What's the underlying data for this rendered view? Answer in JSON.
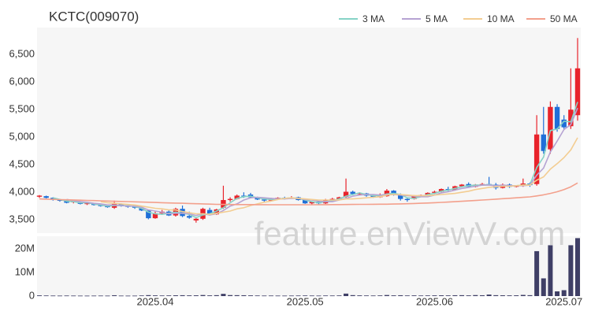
{
  "chart_data": {
    "type": "candlestick",
    "title": "KCTC(009070)",
    "watermark": "feature.enViewV.com",
    "categories": [
      null,
      null,
      null,
      null,
      null,
      null,
      null,
      null,
      null,
      null,
      null,
      null,
      null,
      null,
      null,
      null,
      null,
      "2025.04",
      null,
      null,
      null,
      null,
      null,
      null,
      null,
      null,
      null,
      null,
      null,
      null,
      null,
      null,
      null,
      null,
      null,
      null,
      null,
      null,
      null,
      "2025.05",
      null,
      null,
      null,
      null,
      null,
      null,
      null,
      null,
      null,
      null,
      null,
      null,
      null,
      null,
      null,
      null,
      null,
      null,
      "2025.06",
      null,
      null,
      null,
      null,
      null,
      null,
      null,
      null,
      null,
      null,
      null,
      null,
      null,
      null,
      null,
      null,
      null,
      null,
      "2025.07",
      null,
      null
    ],
    "open": [
      3920,
      3930,
      3900,
      3860,
      3850,
      3820,
      3830,
      3790,
      3800,
      3770,
      3750,
      3720,
      3790,
      3750,
      3740,
      3720,
      3670,
      3530,
      3620,
      3650,
      3580,
      3700,
      3570,
      3490,
      3520,
      3680,
      3600,
      3720,
      3860,
      3880,
      3940,
      3960,
      3910,
      3870,
      3850,
      3880,
      3900,
      3890,
      3910,
      3860,
      3800,
      3830,
      3800,
      3860,
      3880,
      3920,
      4010,
      3970,
      3980,
      3940,
      3910,
      3930,
      4030,
      3960,
      3880,
      3880,
      3940,
      3950,
      3990,
      4010,
      4060,
      4040,
      4110,
      4150,
      4100,
      4140,
      4150,
      4140,
      4080,
      4140,
      4100,
      4120,
      4160,
      4150,
      5050,
      4780,
      5550,
      5320,
      5200,
      5400
    ],
    "high": [
      3950,
      3940,
      3910,
      3880,
      3870,
      3850,
      3840,
      3810,
      3810,
      3790,
      3770,
      3850,
      3800,
      3770,
      3750,
      3730,
      3680,
      3650,
      3680,
      3670,
      3720,
      3760,
      3650,
      3540,
      3720,
      3720,
      3700,
      4120,
      3910,
      3960,
      4000,
      3990,
      3920,
      3890,
      3900,
      3910,
      3920,
      3930,
      3920,
      3870,
      3840,
      3840,
      3880,
      3900,
      3920,
      4250,
      4030,
      4000,
      3990,
      3960,
      3980,
      4060,
      4040,
      3980,
      3900,
      3950,
      3960,
      4000,
      4030,
      4070,
      4100,
      4120,
      4150,
      4180,
      4150,
      4170,
      4280,
      4170,
      4160,
      4160,
      4130,
      4250,
      4180,
      5400,
      5550,
      5650,
      5600,
      5400,
      6250,
      6800
    ],
    "low": [
      3900,
      3890,
      3850,
      3830,
      3800,
      3800,
      3780,
      3770,
      3760,
      3740,
      3720,
      3700,
      3740,
      3720,
      3700,
      3660,
      3510,
      3520,
      3600,
      3570,
      3560,
      3550,
      3520,
      3450,
      3500,
      3580,
      3590,
      3700,
      3830,
      3870,
      3900,
      3900,
      3860,
      3830,
      3840,
      3860,
      3870,
      3880,
      3850,
      3790,
      3780,
      3780,
      3790,
      3850,
      3870,
      3900,
      3950,
      3940,
      3920,
      3900,
      3900,
      3920,
      3940,
      3850,
      3830,
      3870,
      3920,
      3940,
      3970,
      4000,
      4020,
      4030,
      4100,
      4090,
      4090,
      4120,
      4130,
      4050,
      4070,
      4080,
      4090,
      4100,
      4100,
      4120,
      4700,
      4700,
      5100,
      5150,
      5150,
      5300
    ],
    "close": [
      3940,
      3900,
      3860,
      3850,
      3810,
      3840,
      3790,
      3800,
      3770,
      3750,
      3730,
      3790,
      3750,
      3740,
      3720,
      3670,
      3530,
      3620,
      3650,
      3580,
      3700,
      3570,
      3540,
      3520,
      3700,
      3600,
      3690,
      3860,
      3880,
      3940,
      3930,
      3910,
      3870,
      3850,
      3880,
      3900,
      3890,
      3910,
      3860,
      3800,
      3830,
      3800,
      3860,
      3880,
      3910,
      4010,
      3970,
      3980,
      3940,
      3910,
      3960,
      4030,
      3960,
      3880,
      3860,
      3940,
      3950,
      3990,
      4010,
      4060,
      4040,
      4110,
      4140,
      4100,
      4140,
      4150,
      4140,
      4080,
      4140,
      4100,
      4120,
      4160,
      4130,
      5050,
      4750,
      5550,
      5150,
      5180,
      5500,
      6250
    ],
    "up_color": "#e8232b",
    "down_color": "#1f6fd8",
    "ylim": [
      3260,
      6990
    ],
    "yticks": [
      {
        "value": 3500,
        "label": "3,500"
      },
      {
        "value": 4000,
        "label": "4,000"
      },
      {
        "value": 4500,
        "label": "4,500"
      },
      {
        "value": 5000,
        "label": "5,000"
      },
      {
        "value": 5500,
        "label": "5,500"
      },
      {
        "value": 6000,
        "label": "6,000"
      },
      {
        "value": 6500,
        "label": "6,500"
      }
    ],
    "series": [
      {
        "name": "3 MA",
        "color": "#86d3c6",
        "values": [
          null,
          null,
          3900,
          3870,
          3840,
          3830,
          3810,
          3810,
          3790,
          3770,
          3750,
          3760,
          3760,
          3760,
          3740,
          3710,
          3640,
          3610,
          3600,
          3620,
          3640,
          3620,
          3600,
          3540,
          3590,
          3610,
          3660,
          3720,
          3810,
          3890,
          3920,
          3930,
          3900,
          3880,
          3870,
          3880,
          3890,
          3900,
          3890,
          3860,
          3830,
          3810,
          3830,
          3850,
          3880,
          3930,
          3960,
          3990,
          3960,
          3940,
          3940,
          3970,
          3980,
          3960,
          3900,
          3890,
          3920,
          3960,
          3980,
          4020,
          4040,
          4070,
          4100,
          4120,
          4130,
          4130,
          4140,
          4120,
          4120,
          4110,
          4120,
          4130,
          4140,
          4450,
          4640,
          5120,
          5150,
          5290,
          5280,
          5640
        ]
      },
      {
        "name": "5 MA",
        "color": "#b6a3d3",
        "values": [
          null,
          null,
          null,
          null,
          3870,
          3850,
          3830,
          3820,
          3800,
          3790,
          3770,
          3770,
          3760,
          3750,
          3750,
          3730,
          3680,
          3660,
          3640,
          3610,
          3620,
          3620,
          3610,
          3580,
          3610,
          3590,
          3610,
          3670,
          3750,
          3790,
          3860,
          3900,
          3910,
          3900,
          3890,
          3880,
          3880,
          3890,
          3890,
          3870,
          3860,
          3840,
          3830,
          3830,
          3860,
          3890,
          3930,
          3950,
          3960,
          3960,
          3950,
          3960,
          3960,
          3950,
          3940,
          3930,
          3920,
          3920,
          3950,
          3990,
          4010,
          4040,
          4070,
          4090,
          4110,
          4130,
          4130,
          4120,
          4130,
          4120,
          4120,
          4120,
          4130,
          4310,
          4440,
          4730,
          4930,
          5140,
          5230,
          5530
        ]
      },
      {
        "name": "10 MA",
        "color": "#f3cd92",
        "values": [
          null,
          null,
          null,
          null,
          null,
          null,
          null,
          null,
          null,
          3830,
          3810,
          3800,
          3790,
          3780,
          3770,
          3750,
          3730,
          3710,
          3700,
          3680,
          3680,
          3650,
          3630,
          3610,
          3610,
          3600,
          3620,
          3640,
          3660,
          3700,
          3720,
          3760,
          3790,
          3820,
          3840,
          3870,
          3890,
          3900,
          3890,
          3880,
          3870,
          3860,
          3860,
          3860,
          3860,
          3880,
          3880,
          3890,
          3900,
          3910,
          3920,
          3950,
          3960,
          3960,
          3950,
          3940,
          3940,
          3940,
          3950,
          3960,
          3970,
          3980,
          4000,
          4020,
          4050,
          4070,
          4090,
          4100,
          4110,
          4110,
          4120,
          4130,
          4130,
          4220,
          4280,
          4420,
          4520,
          4630,
          4770,
          4990
        ]
      },
      {
        "name": "50 MA",
        "color": "#f3a08c",
        "values": [
          3880,
          3876,
          3872,
          3868,
          3865,
          3861,
          3857,
          3853,
          3850,
          3846,
          3842,
          3838,
          3835,
          3831,
          3827,
          3823,
          3820,
          3816,
          3812,
          3808,
          3805,
          3801,
          3797,
          3793,
          3790,
          3786,
          3782,
          3780,
          3779,
          3778,
          3777,
          3777,
          3776,
          3776,
          3775,
          3775,
          3775,
          3775,
          3775,
          3775,
          3775,
          3776,
          3776,
          3777,
          3778,
          3779,
          3780,
          3781,
          3782,
          3783,
          3784,
          3785,
          3787,
          3790,
          3793,
          3797,
          3801,
          3806,
          3811,
          3817,
          3823,
          3830,
          3837,
          3844,
          3852,
          3860,
          3868,
          3876,
          3884,
          3892,
          3900,
          3909,
          3918,
          3935,
          3955,
          3980,
          4010,
          4050,
          4100,
          4170
        ]
      }
    ],
    "volume": {
      "color": "#3f3f66",
      "values": [
        300000,
        250000,
        220000,
        200000,
        230000,
        210000,
        190000,
        180000,
        200000,
        210000,
        190000,
        350000,
        200000,
        180000,
        190000,
        260000,
        400000,
        300000,
        250000,
        280000,
        330000,
        360000,
        300000,
        320000,
        450000,
        300000,
        380000,
        950000,
        420000,
        380000,
        350000,
        300000,
        250000,
        220000,
        230000,
        210000,
        200000,
        220000,
        240000,
        260000,
        230000,
        210000,
        250000,
        240000,
        270000,
        1050000,
        400000,
        300000,
        260000,
        240000,
        280000,
        450000,
        300000,
        350000,
        260000,
        290000,
        250000,
        280000,
        300000,
        330000,
        290000,
        350000,
        380000,
        300000,
        420000,
        350000,
        650000,
        380000,
        340000,
        300000,
        320000,
        500000,
        380000,
        19000000,
        7500000,
        21500000,
        2000000,
        2500000,
        21500000,
        24500000
      ],
      "ylim": [
        0,
        25300000
      ],
      "yticks": [
        0,
        {
          "value": 10000000,
          "label": "10M"
        },
        {
          "value": 20000000,
          "label": "20M"
        }
      ]
    },
    "legend": "top-right",
    "grid": false
  }
}
